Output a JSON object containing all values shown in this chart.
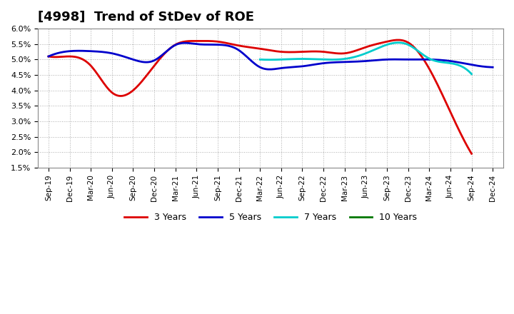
{
  "title": "[4998]  Trend of StDev of ROE",
  "ylim": [
    0.015,
    0.06
  ],
  "yticks": [
    0.015,
    0.02,
    0.025,
    0.03,
    0.035,
    0.04,
    0.045,
    0.05,
    0.055,
    0.06
  ],
  "ytick_labels": [
    "1.5%",
    "2.0%",
    "2.5%",
    "3.0%",
    "3.5%",
    "4.0%",
    "4.5%",
    "5.0%",
    "5.5%",
    "6.0%"
  ],
  "x_labels": [
    "Sep-19",
    "Dec-19",
    "Mar-20",
    "Jun-20",
    "Sep-20",
    "Dec-20",
    "Mar-21",
    "Jun-21",
    "Sep-21",
    "Dec-21",
    "Mar-22",
    "Jun-22",
    "Sep-22",
    "Dec-22",
    "Mar-23",
    "Jun-23",
    "Sep-23",
    "Dec-23",
    "Mar-24",
    "Jun-24",
    "Sep-24",
    "Dec-24"
  ],
  "series": {
    "3 Years": {
      "color": "#dd0000",
      "values": [
        0.051,
        0.051,
        0.048,
        0.0393,
        0.04,
        0.048,
        0.0548,
        0.056,
        0.0558,
        0.0545,
        0.0535,
        0.0525,
        0.0525,
        0.0525,
        0.052,
        0.054,
        0.0558,
        0.0555,
        0.047,
        0.033,
        0.0195,
        null
      ]
    },
    "5 Years": {
      "color": "#0000cc",
      "values": [
        0.051,
        0.0527,
        0.0527,
        0.052,
        0.05,
        0.0497,
        0.0547,
        0.055,
        0.0548,
        0.053,
        0.0475,
        0.0472,
        0.0478,
        0.0488,
        0.0492,
        0.0495,
        0.05,
        0.05,
        0.05,
        0.0495,
        0.0483,
        0.0475
      ]
    },
    "7 Years": {
      "color": "#00cccc",
      "values": [
        null,
        null,
        null,
        null,
        null,
        null,
        null,
        null,
        null,
        null,
        0.05,
        0.05,
        0.0502,
        0.05,
        0.0502,
        0.052,
        0.0548,
        0.0548,
        0.0503,
        0.0488,
        0.0453,
        null
      ]
    },
    "10 Years": {
      "color": "#007700",
      "values": [
        null,
        null,
        null,
        null,
        null,
        null,
        null,
        null,
        null,
        null,
        null,
        null,
        null,
        null,
        null,
        null,
        null,
        null,
        null,
        null,
        null,
        null
      ]
    }
  },
  "background_color": "#ffffff",
  "plot_bg_color": "#ffffff",
  "grid_color": "#999999",
  "title_fontsize": 13,
  "line_width": 2.0
}
